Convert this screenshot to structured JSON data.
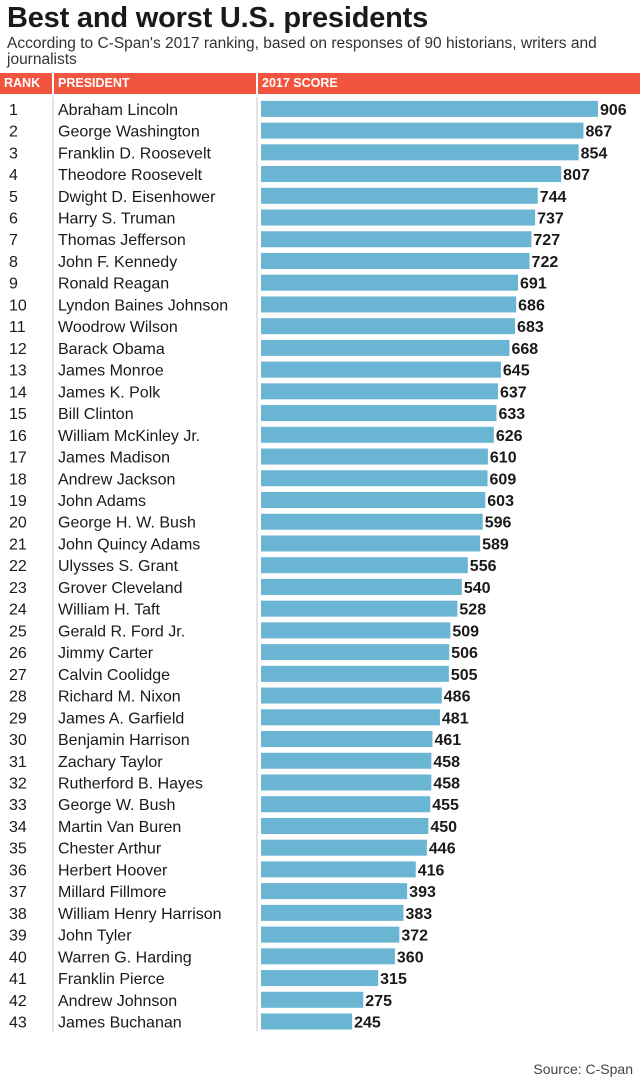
{
  "header": {
    "title": "Best and worst U.S. presidents",
    "subtitle": "According to C-Span's 2017 ranking, based on responses of 90 historians, writers and journalists",
    "accent_color": "#f2553f",
    "bar_color": "#6ab4d4"
  },
  "table_header": {
    "rank_label": "RANK",
    "president_label": "PRESIDENT",
    "score_label": "2017 SCORE"
  },
  "chart_data": {
    "type": "bar",
    "orientation": "horizontal",
    "title": "Best and worst U.S. presidents",
    "xlabel": "2017 SCORE",
    "ylabel": "PRESIDENT",
    "grid": false,
    "ranks": [
      1,
      2,
      3,
      4,
      5,
      6,
      7,
      8,
      9,
      10,
      11,
      12,
      13,
      14,
      15,
      16,
      17,
      18,
      19,
      20,
      21,
      22,
      23,
      24,
      25,
      26,
      27,
      28,
      29,
      30,
      31,
      32,
      33,
      34,
      35,
      36,
      37,
      38,
      39,
      40,
      41,
      42,
      43
    ],
    "categories": [
      "Abraham Lincoln",
      "George Washington",
      "Franklin D. Roosevelt",
      "Theodore Roosevelt",
      "Dwight D. Eisenhower",
      "Harry S. Truman",
      "Thomas Jefferson",
      "John F. Kennedy",
      "Ronald Reagan",
      "Lyndon Baines Johnson",
      "Woodrow Wilson",
      "Barack Obama",
      "James Monroe",
      "James K. Polk",
      "Bill Clinton",
      "William McKinley Jr.",
      "James Madison",
      "Andrew Jackson",
      "John Adams",
      "George H. W. Bush",
      "John Quincy Adams",
      "Ulysses S. Grant",
      "Grover Cleveland",
      "William H. Taft",
      "Gerald R. Ford Jr.",
      "Jimmy Carter",
      "Calvin Coolidge",
      "Richard M. Nixon",
      "James A. Garfield",
      "Benjamin Harrison",
      "Zachary Taylor",
      "Rutherford B. Hayes",
      "George W. Bush",
      "Martin Van Buren",
      "Chester Arthur",
      "Herbert Hoover",
      "Millard Fillmore",
      "William Henry Harrison",
      "John Tyler",
      "Warren G. Harding",
      "Franklin Pierce",
      "Andrew Johnson",
      "James Buchanan"
    ],
    "values": [
      906,
      867,
      854,
      807,
      744,
      737,
      727,
      722,
      691,
      686,
      683,
      668,
      645,
      637,
      633,
      626,
      610,
      609,
      603,
      596,
      589,
      556,
      540,
      528,
      509,
      506,
      505,
      486,
      481,
      461,
      458,
      458,
      455,
      450,
      446,
      416,
      393,
      383,
      372,
      360,
      315,
      275,
      245
    ]
  },
  "footer": {
    "source": "Source: C-Span"
  }
}
